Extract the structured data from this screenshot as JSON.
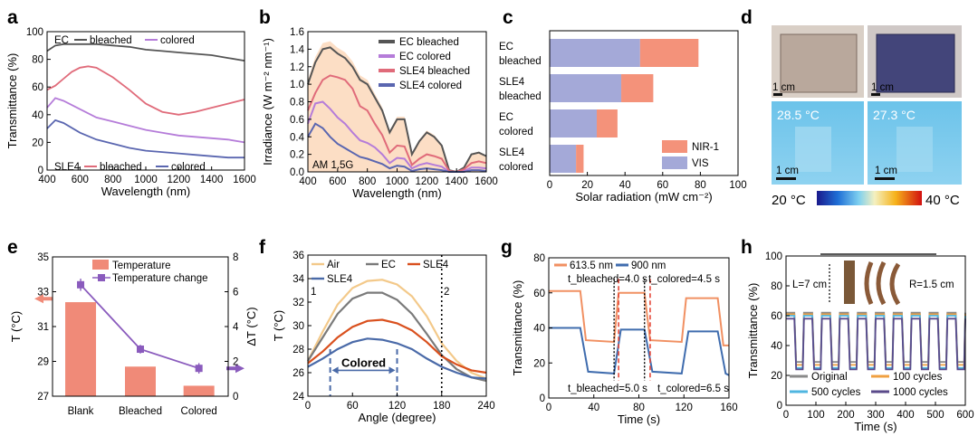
{
  "figure_title": "",
  "colors": {
    "ec_bleached": "#555555",
    "ec_colored": "#b57cd9",
    "sle4_bleached": "#e06b7a",
    "sle4_colored": "#5a66b0",
    "nir": "#f4927a",
    "vis": "#a4a9d8",
    "temp_bar": "#f08a78",
    "temp_change": "#8a5bbd",
    "air": "#f3c98a",
    "ec_gray": "#7a7a7a",
    "sle4_orange": "#d9501e",
    "sle4_blue": "#4a6aa8",
    "nm613": "#f19062",
    "nm900": "#3f6cae",
    "original": "#8a8a8a",
    "c100": "#f0a040",
    "c500": "#4fb6e0",
    "c1000": "#5a4a8a"
  },
  "chart_data": [
    {
      "panel": "a",
      "type": "line",
      "xlabel": "Wavelength (nm)",
      "ylabel": "Transmittance (%)",
      "xlim": [
        400,
        1600
      ],
      "ylim": [
        0,
        100
      ],
      "xticks": [
        "400",
        "600",
        "800",
        "1000",
        "1200",
        "1400",
        "1600"
      ],
      "yticks": [
        "0",
        "20",
        "40",
        "60",
        "80",
        "100"
      ],
      "legend_top": {
        "group": "EC",
        "bleached": "bleached",
        "colored": "colored"
      },
      "legend_bottom": {
        "group": "SLE4",
        "bleached": "bleached",
        "colored": "colored"
      },
      "series": [
        {
          "name": "EC bleached",
          "x": [
            400,
            450,
            500,
            600,
            700,
            800,
            900,
            1000,
            1100,
            1200,
            1300,
            1400,
            1500,
            1600
          ],
          "values": [
            86,
            90,
            91,
            91,
            91,
            90,
            89,
            87,
            86,
            85,
            84,
            83,
            81,
            79
          ]
        },
        {
          "name": "EC colored",
          "x": [
            400,
            450,
            500,
            600,
            700,
            800,
            900,
            1000,
            1100,
            1200,
            1300,
            1400,
            1500,
            1600
          ],
          "values": [
            45,
            52,
            50,
            44,
            38,
            35,
            32,
            29,
            27,
            25,
            24,
            23,
            22,
            20
          ]
        },
        {
          "name": "SLE4 bleached",
          "x": [
            400,
            450,
            500,
            550,
            600,
            650,
            700,
            800,
            900,
            1000,
            1100,
            1200,
            1300,
            1400,
            1500,
            1600
          ],
          "values": [
            58,
            61,
            66,
            71,
            74,
            75,
            74,
            67,
            58,
            48,
            42,
            40,
            42,
            45,
            48,
            51
          ]
        },
        {
          "name": "SLE4 colored",
          "x": [
            400,
            450,
            500,
            600,
            700,
            800,
            900,
            1000,
            1100,
            1200,
            1300,
            1400,
            1500,
            1600
          ],
          "values": [
            30,
            36,
            34,
            27,
            22,
            19,
            16,
            14,
            13,
            12,
            11,
            10,
            9,
            9
          ]
        }
      ]
    },
    {
      "panel": "b",
      "type": "line",
      "xlabel": "Wavelength (nm)",
      "ylabel": "Irradiance (W m⁻² nm⁻¹)",
      "annotation": "AM 1.5G",
      "xlim": [
        400,
        1600
      ],
      "ylim": [
        0,
        1.6
      ],
      "xticks": [
        "400",
        "600",
        "800",
        "1000",
        "1200",
        "1400",
        "1600"
      ],
      "yticks": [
        "0.0",
        "0.2",
        "0.4",
        "0.6",
        "0.8",
        "1.0",
        "1.2",
        "1.4",
        "1.6"
      ],
      "series": [
        {
          "name": "EC bleached",
          "x": [
            400,
            450,
            500,
            550,
            600,
            650,
            700,
            750,
            800,
            850,
            900,
            950,
            1000,
            1050,
            1100,
            1150,
            1200,
            1250,
            1300,
            1350,
            1400,
            1450,
            1500,
            1550,
            1600
          ],
          "values": [
            1.0,
            1.25,
            1.4,
            1.42,
            1.35,
            1.3,
            1.2,
            1.05,
            1.0,
            0.85,
            0.7,
            0.45,
            0.6,
            0.6,
            0.2,
            0.35,
            0.45,
            0.4,
            0.3,
            0.02,
            0.0,
            0.05,
            0.2,
            0.22,
            0.18
          ]
        },
        {
          "name": "EC colored",
          "x": [
            400,
            450,
            500,
            550,
            600,
            650,
            700,
            750,
            800,
            850,
            900,
            950,
            1000,
            1050,
            1100,
            1150,
            1200,
            1250,
            1300,
            1350,
            1400,
            1450,
            1500,
            1550,
            1600
          ],
          "values": [
            0.55,
            0.78,
            0.8,
            0.72,
            0.62,
            0.55,
            0.45,
            0.36,
            0.33,
            0.28,
            0.2,
            0.1,
            0.16,
            0.15,
            0.04,
            0.08,
            0.1,
            0.08,
            0.06,
            0.0,
            0.0,
            0.01,
            0.05,
            0.05,
            0.04
          ]
        },
        {
          "name": "SLE4 bleached",
          "x": [
            400,
            450,
            500,
            550,
            600,
            650,
            700,
            750,
            800,
            850,
            900,
            950,
            1000,
            1050,
            1100,
            1150,
            1200,
            1250,
            1300,
            1350,
            1400,
            1450,
            1500,
            1550,
            1600
          ],
          "values": [
            0.7,
            0.9,
            1.05,
            1.1,
            1.08,
            1.05,
            0.95,
            0.75,
            0.7,
            0.55,
            0.42,
            0.22,
            0.3,
            0.29,
            0.08,
            0.15,
            0.2,
            0.18,
            0.15,
            0.01,
            0.0,
            0.03,
            0.1,
            0.12,
            0.1
          ]
        },
        {
          "name": "SLE4 colored",
          "x": [
            400,
            450,
            500,
            550,
            600,
            650,
            700,
            750,
            800,
            850,
            900,
            950,
            1000,
            1050,
            1100,
            1150,
            1200,
            1250,
            1300,
            1350,
            1400,
            1450,
            1500,
            1550,
            1600
          ],
          "values": [
            0.4,
            0.55,
            0.5,
            0.4,
            0.32,
            0.27,
            0.22,
            0.17,
            0.15,
            0.12,
            0.09,
            0.04,
            0.07,
            0.06,
            0.01,
            0.03,
            0.04,
            0.03,
            0.02,
            0.0,
            0.0,
            0.0,
            0.02,
            0.02,
            0.01
          ]
        }
      ]
    },
    {
      "panel": "c",
      "type": "bar",
      "orientation": "horizontal",
      "xlabel": "Solar radiation (mW cm⁻²)",
      "xlim": [
        0,
        100
      ],
      "xticks": [
        "0",
        "20",
        "40",
        "60",
        "80",
        "100"
      ],
      "categories": [
        [
          "EC",
          "bleached"
        ],
        [
          "SLE4",
          "bleached"
        ],
        [
          "EC",
          "colored"
        ],
        [
          "SLE4",
          "colored"
        ]
      ],
      "series": [
        {
          "name": "VIS",
          "values": [
            48,
            38,
            25,
            14
          ]
        },
        {
          "name": "NIR-1",
          "values": [
            31,
            17,
            11,
            4
          ]
        }
      ]
    },
    {
      "panel": "e",
      "type": "bar",
      "categories": [
        "Blank",
        "Bleached",
        "Colored"
      ],
      "ylabel": "T (°C)",
      "ylabel_right": "ΔT (°C)",
      "ylim": [
        27,
        35
      ],
      "ylim_right": [
        0,
        8
      ],
      "yticks": [
        "27",
        "29",
        "31",
        "33",
        "35"
      ],
      "yticks_right": [
        "0",
        "2",
        "4",
        "6",
        "8"
      ],
      "series": [
        {
          "name": "Temperature",
          "values": [
            32.4,
            28.7,
            27.6
          ]
        },
        {
          "name": "Temperature change",
          "values": [
            6.4,
            2.7,
            1.6
          ],
          "errors": [
            0.35,
            0.25,
            0.3
          ]
        }
      ]
    },
    {
      "panel": "f",
      "type": "line",
      "xlabel": "Angle (degree)",
      "ylabel": "T (°C)",
      "xlim": [
        0,
        240
      ],
      "ylim": [
        24,
        36
      ],
      "xticks": [
        "0",
        "60",
        "120",
        "180",
        "240"
      ],
      "yticks": [
        "24",
        "26",
        "28",
        "30",
        "32",
        "34",
        "36"
      ],
      "annotations": {
        "colored": "Colored",
        "mark1": "1",
        "mark2": "2"
      },
      "series": [
        {
          "name": "Air",
          "x": [
            0,
            20,
            40,
            60,
            80,
            100,
            120,
            140,
            160,
            180,
            200,
            220,
            240
          ],
          "values": [
            27.0,
            29.5,
            31.8,
            33.2,
            33.8,
            33.9,
            33.5,
            32.5,
            30.8,
            28.5,
            27.0,
            26.0,
            25.5
          ]
        },
        {
          "name": "EC",
          "x": [
            0,
            20,
            40,
            60,
            80,
            100,
            120,
            140,
            160,
            180,
            200,
            220,
            240
          ],
          "values": [
            27.0,
            29.0,
            31.0,
            32.3,
            32.8,
            32.8,
            32.2,
            31.0,
            29.3,
            27.5,
            26.3,
            25.6,
            25.3
          ]
        },
        {
          "name": "SLE4",
          "x": [
            0,
            20,
            40,
            60,
            80,
            100,
            120,
            140,
            160,
            180,
            200,
            220,
            240
          ],
          "values": [
            26.8,
            27.8,
            29.0,
            29.9,
            30.4,
            30.5,
            30.2,
            29.6,
            28.6,
            27.4,
            26.7,
            26.2,
            26.0
          ]
        },
        {
          "name": "SLE4",
          "x": [
            0,
            20,
            40,
            60,
            80,
            100,
            120,
            140,
            160,
            180,
            200,
            220,
            240
          ],
          "values": [
            26.5,
            27.2,
            28.0,
            28.6,
            28.9,
            28.8,
            28.5,
            28.0,
            27.2,
            26.5,
            26.0,
            25.6,
            25.5
          ]
        }
      ]
    },
    {
      "panel": "g",
      "type": "line",
      "xlabel": "Time (s)",
      "ylabel": "Transmittance (%)",
      "xlim": [
        0,
        160
      ],
      "ylim": [
        0,
        80
      ],
      "xticks": [
        "0",
        "40",
        "80",
        "120",
        "160"
      ],
      "yticks": [
        "0",
        "20",
        "40",
        "60",
        "80"
      ],
      "annotations": {
        "tb_top": "t_bleached=4.0 s",
        "tc_top": "t_colored=4.5 s",
        "tb_bot": "t_bleached=5.0 s",
        "tc_bot": "t_colored=6.5 s"
      },
      "series": [
        {
          "name": "613.5 nm",
          "x": [
            0,
            28,
            33,
            58,
            62,
            85,
            90,
            118,
            122,
            150,
            155,
            160
          ],
          "values": [
            61,
            61,
            33,
            32,
            60,
            60,
            33,
            32,
            57,
            57,
            30,
            30
          ]
        },
        {
          "name": "900 nm",
          "x": [
            0,
            28,
            35,
            58,
            64,
            85,
            92,
            118,
            124,
            150,
            157,
            160
          ],
          "values": [
            40,
            40,
            15,
            14,
            39,
            39,
            15,
            14,
            38,
            38,
            14,
            13
          ]
        }
      ]
    },
    {
      "panel": "h",
      "type": "line",
      "xlabel": "Time (s)",
      "ylabel": "Transmittance (%)",
      "xlim": [
        0,
        600
      ],
      "ylim": [
        0,
        100
      ],
      "xticks": [
        "0",
        "100",
        "200",
        "300",
        "400",
        "500",
        "600"
      ],
      "yticks": [
        "0",
        "20",
        "40",
        "60",
        "80",
        "100"
      ],
      "annotations": {
        "length": "L=7 cm",
        "radius": "R=1.5 cm"
      },
      "series": [
        {
          "name": "Original",
          "high": 62,
          "low": 29
        },
        {
          "name": "100 cycles",
          "high": 61,
          "low": 27
        },
        {
          "name": "500 cycles",
          "high": 60,
          "low": 25
        },
        {
          "name": "1000 cycles",
          "high": 58,
          "low": 24
        }
      ]
    }
  ],
  "panels": {
    "a": "a",
    "b": "b",
    "c": "c",
    "d": "d",
    "e": "e",
    "f": "f",
    "g": "g",
    "h": "h"
  },
  "photos": {
    "scale_bar": "1 cm",
    "temp_left": "28.5 °C",
    "temp_right": "27.3 °C",
    "colorbar_min": "20 °C",
    "colorbar_max": "40 °C"
  }
}
